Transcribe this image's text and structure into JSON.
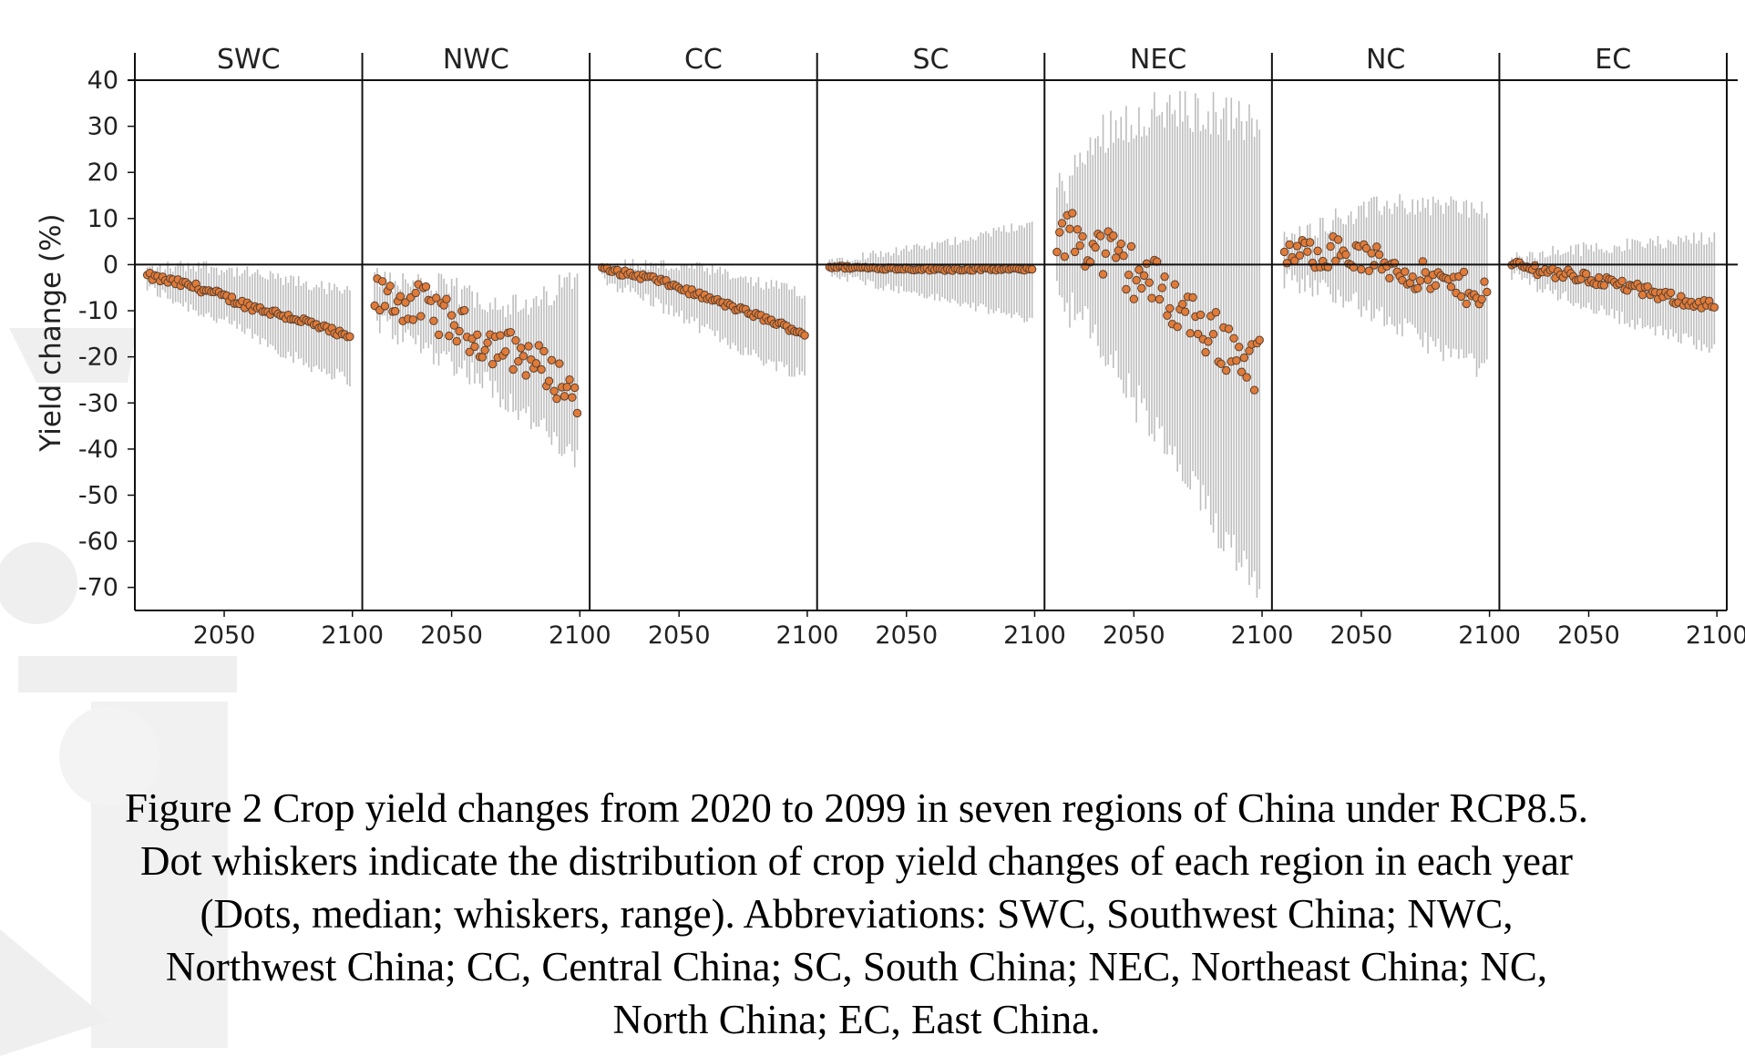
{
  "chart_data": {
    "type": "scatter",
    "subtype": "dot-whisker small multiples",
    "ylabel": "Yield change (%)",
    "xlabel": "",
    "ylim": [
      -75,
      40
    ],
    "yticks": [
      40,
      30,
      20,
      10,
      0,
      -10,
      -20,
      -30,
      -40,
      -50,
      -60,
      -70
    ],
    "xlim": [
      2018,
      2101
    ],
    "xticks": [
      2050,
      2100
    ],
    "colors": {
      "dot": "#E07B39",
      "dot_edge": "#5a4030",
      "whisker": "#BDBDBD",
      "axis": "#111111"
    },
    "panels": [
      {
        "name": "SWC",
        "years": [
          2020,
          2099
        ],
        "median_anchors": [
          [
            2020,
            -2.5
          ],
          [
            2040,
            -5
          ],
          [
            2060,
            -9
          ],
          [
            2080,
            -12
          ],
          [
            2099,
            -16
          ]
        ],
        "range_low_anchors": [
          [
            2020,
            -5
          ],
          [
            2040,
            -10
          ],
          [
            2060,
            -15
          ],
          [
            2080,
            -21
          ],
          [
            2099,
            -25
          ]
        ],
        "range_high_anchors": [
          [
            2020,
            -1
          ],
          [
            2040,
            0
          ],
          [
            2060,
            -2
          ],
          [
            2080,
            -4
          ],
          [
            2099,
            -6
          ]
        ],
        "median_noise": 0.8,
        "range_noise": 1.5
      },
      {
        "name": "NWC",
        "years": [
          2020,
          2099
        ],
        "median_anchors": [
          [
            2020,
            -7
          ],
          [
            2040,
            -9
          ],
          [
            2060,
            -16
          ],
          [
            2080,
            -20
          ],
          [
            2099,
            -28
          ]
        ],
        "range_low_anchors": [
          [
            2020,
            -12
          ],
          [
            2040,
            -18
          ],
          [
            2060,
            -24
          ],
          [
            2080,
            -33
          ],
          [
            2099,
            -43
          ]
        ],
        "range_high_anchors": [
          [
            2020,
            -3
          ],
          [
            2040,
            -4
          ],
          [
            2060,
            -7
          ],
          [
            2080,
            -10
          ],
          [
            2099,
            -2
          ]
        ],
        "median_noise": 4.5,
        "range_noise": 3
      },
      {
        "name": "CC",
        "years": [
          2020,
          2099
        ],
        "median_anchors": [
          [
            2020,
            -1
          ],
          [
            2040,
            -3
          ],
          [
            2060,
            -7
          ],
          [
            2080,
            -11
          ],
          [
            2099,
            -15
          ]
        ],
        "range_low_anchors": [
          [
            2020,
            -3
          ],
          [
            2040,
            -8
          ],
          [
            2060,
            -14
          ],
          [
            2080,
            -20
          ],
          [
            2099,
            -24
          ]
        ],
        "range_high_anchors": [
          [
            2020,
            0
          ],
          [
            2040,
            0
          ],
          [
            2060,
            -1
          ],
          [
            2080,
            -4
          ],
          [
            2099,
            -6
          ]
        ],
        "median_noise": 0.6,
        "range_noise": 1.5
      },
      {
        "name": "SC",
        "years": [
          2020,
          2099
        ],
        "median_anchors": [
          [
            2020,
            -0.5
          ],
          [
            2060,
            -1
          ],
          [
            2099,
            -1
          ]
        ],
        "range_low_anchors": [
          [
            2020,
            -2
          ],
          [
            2060,
            -7
          ],
          [
            2099,
            -12
          ]
        ],
        "range_high_anchors": [
          [
            2020,
            1
          ],
          [
            2060,
            4
          ],
          [
            2099,
            9
          ]
        ],
        "median_noise": 0.3,
        "range_noise": 1
      },
      {
        "name": "NEC",
        "years": [
          2020,
          2099
        ],
        "median_anchors": [
          [
            2020,
            8
          ],
          [
            2040,
            2
          ],
          [
            2060,
            -5
          ],
          [
            2080,
            -15
          ],
          [
            2099,
            -22
          ]
        ],
        "range_low_anchors": [
          [
            2020,
            -5
          ],
          [
            2040,
            -20
          ],
          [
            2060,
            -38
          ],
          [
            2080,
            -55
          ],
          [
            2099,
            -68
          ]
        ],
        "range_high_anchors": [
          [
            2020,
            15
          ],
          [
            2040,
            30
          ],
          [
            2060,
            33
          ],
          [
            2080,
            33
          ],
          [
            2099,
            30
          ]
        ],
        "median_noise": 6,
        "range_noise": 5
      },
      {
        "name": "NC",
        "years": [
          2020,
          2099
        ],
        "median_anchors": [
          [
            2020,
            2
          ],
          [
            2040,
            3
          ],
          [
            2060,
            0
          ],
          [
            2080,
            -4
          ],
          [
            2099,
            -6
          ]
        ],
        "range_low_anchors": [
          [
            2020,
            -3
          ],
          [
            2040,
            -6
          ],
          [
            2060,
            -12
          ],
          [
            2080,
            -18
          ],
          [
            2099,
            -23
          ]
        ],
        "range_high_anchors": [
          [
            2020,
            5
          ],
          [
            2040,
            10
          ],
          [
            2060,
            13
          ],
          [
            2080,
            13
          ],
          [
            2099,
            12
          ]
        ],
        "median_noise": 3.5,
        "range_noise": 2.5
      },
      {
        "name": "EC",
        "years": [
          2020,
          2099
        ],
        "median_anchors": [
          [
            2020,
            0
          ],
          [
            2040,
            -2
          ],
          [
            2060,
            -4
          ],
          [
            2080,
            -7
          ],
          [
            2099,
            -9
          ]
        ],
        "range_low_anchors": [
          [
            2020,
            -2
          ],
          [
            2040,
            -7
          ],
          [
            2060,
            -11
          ],
          [
            2080,
            -15
          ],
          [
            2099,
            -18
          ]
        ],
        "range_high_anchors": [
          [
            2020,
            1
          ],
          [
            2040,
            3
          ],
          [
            2060,
            4
          ],
          [
            2080,
            5
          ],
          [
            2099,
            6
          ]
        ],
        "median_noise": 1.2,
        "range_noise": 1.5
      }
    ]
  },
  "caption": {
    "lines": [
      "Figure 2 Crop yield changes from 2020 to 2099 in seven regions of China under RCP8.5.",
      "Dot whiskers indicate the distribution of crop yield changes of each region in each year",
      "(Dots, median; whiskers, range). Abbreviations: SWC, Southwest China; NWC,",
      "Northwest China; CC, Central China; SC, South China; NEC, Northeast China; NC,",
      "North China; EC, East China."
    ]
  }
}
